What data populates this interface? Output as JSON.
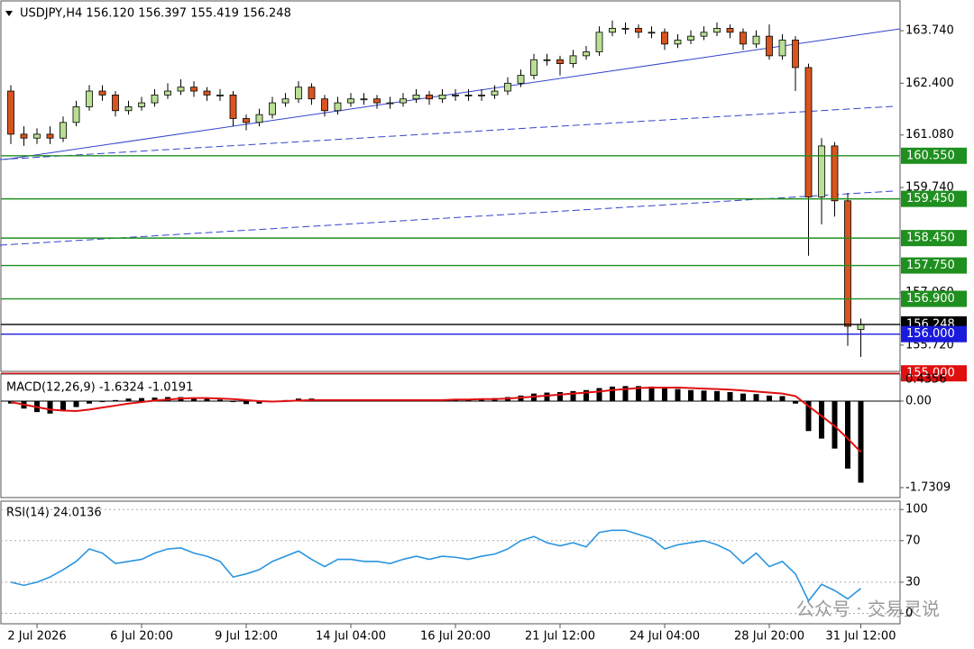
{
  "chart_data": [
    {
      "type": "candlestick",
      "title": "USDJPY,H4  156.120 156.397 155.419 156.248",
      "categories": [
        null,
        null,
        "2 Jul 2026",
        null,
        null,
        null,
        null,
        null,
        null,
        null,
        "6 Jul 20:00",
        null,
        null,
        null,
        null,
        null,
        null,
        null,
        "9 Jul 12:00",
        null,
        null,
        null,
        null,
        null,
        null,
        null,
        "14 Jul 04:00",
        null,
        null,
        null,
        null,
        null,
        null,
        null,
        "16 Jul 20:00",
        null,
        null,
        null,
        null,
        null,
        null,
        null,
        "21 Jul 12:00",
        null,
        null,
        null,
        null,
        null,
        null,
        null,
        "24 Jul 04:00",
        null,
        null,
        null,
        null,
        null,
        null,
        null,
        "28 Jul 20:00",
        null,
        null,
        null,
        null,
        null,
        null,
        "31 Jul 12:00"
      ],
      "open": [
        162.2,
        161.1,
        161.0,
        161.1,
        161.0,
        161.4,
        161.8,
        162.2,
        162.1,
        161.7,
        161.8,
        161.9,
        162.1,
        162.2,
        162.3,
        162.2,
        162.1,
        162.1,
        161.5,
        161.4,
        161.6,
        161.9,
        162.0,
        162.3,
        162.0,
        161.7,
        161.9,
        162.0,
        162.0,
        161.9,
        161.9,
        162.0,
        162.1,
        162.0,
        162.1,
        162.1,
        162.1,
        162.1,
        162.2,
        162.4,
        162.6,
        163.0,
        163.0,
        162.9,
        163.1,
        163.2,
        163.7,
        163.8,
        163.8,
        163.7,
        163.7,
        163.4,
        163.5,
        163.6,
        163.7,
        163.8,
        163.7,
        163.4,
        163.6,
        163.1,
        163.5,
        162.8,
        159.5,
        160.8,
        159.4,
        156.12
      ],
      "high": [
        162.35,
        161.3,
        161.25,
        161.3,
        161.55,
        161.95,
        162.35,
        162.35,
        162.2,
        161.95,
        162.05,
        162.25,
        162.4,
        162.5,
        162.45,
        162.3,
        162.25,
        162.2,
        161.6,
        161.75,
        162.05,
        162.15,
        162.45,
        162.4,
        162.1,
        162.05,
        162.15,
        162.15,
        162.1,
        162.05,
        162.15,
        162.25,
        162.2,
        162.25,
        162.25,
        162.25,
        162.25,
        162.35,
        162.55,
        162.75,
        163.15,
        163.15,
        163.1,
        163.25,
        163.35,
        163.85,
        164.0,
        163.95,
        163.9,
        163.85,
        163.8,
        163.65,
        163.75,
        163.85,
        163.95,
        163.9,
        163.8,
        163.75,
        163.9,
        163.65,
        163.6,
        162.9,
        161.0,
        160.9,
        159.6,
        156.397
      ],
      "low": [
        160.85,
        160.8,
        160.85,
        160.85,
        160.9,
        161.3,
        161.7,
        161.95,
        161.55,
        161.6,
        161.7,
        161.8,
        162.0,
        162.1,
        162.05,
        161.95,
        161.95,
        161.3,
        161.2,
        161.3,
        161.5,
        161.8,
        161.9,
        161.85,
        161.55,
        161.6,
        161.8,
        161.85,
        161.75,
        161.75,
        161.8,
        161.9,
        161.85,
        161.9,
        161.95,
        161.95,
        161.95,
        162.0,
        162.1,
        162.3,
        162.5,
        162.85,
        162.6,
        162.8,
        163.0,
        163.1,
        163.6,
        163.65,
        163.55,
        163.55,
        163.25,
        163.3,
        163.4,
        163.5,
        163.6,
        163.55,
        163.25,
        163.3,
        163.0,
        163.0,
        162.2,
        158.0,
        158.8,
        159.0,
        155.7,
        155.419
      ],
      "close": [
        161.1,
        161.0,
        161.1,
        161.0,
        161.4,
        161.8,
        162.2,
        162.1,
        161.7,
        161.8,
        161.9,
        162.1,
        162.2,
        162.3,
        162.2,
        162.1,
        162.1,
        161.5,
        161.4,
        161.6,
        161.9,
        162.0,
        162.3,
        162.0,
        161.7,
        161.9,
        162.0,
        162.0,
        161.9,
        161.9,
        162.0,
        162.1,
        162.0,
        162.1,
        162.1,
        162.1,
        162.1,
        162.2,
        162.4,
        162.6,
        163.0,
        163.0,
        162.9,
        163.1,
        163.2,
        163.7,
        163.8,
        163.8,
        163.7,
        163.7,
        163.4,
        163.5,
        163.6,
        163.7,
        163.8,
        163.7,
        163.4,
        163.6,
        163.1,
        163.5,
        162.8,
        159.5,
        160.8,
        159.4,
        156.2,
        156.248
      ],
      "up_color": "#b9df95",
      "down_color": "#d9541e",
      "ylim": [
        155.05,
        164.5
      ],
      "yticks": [
        {
          "value": 163.74,
          "label": "163.740"
        },
        {
          "value": 162.4,
          "label": "162.400"
        },
        {
          "value": 161.08,
          "label": "161.080"
        },
        {
          "value": 159.74,
          "label": "159.740"
        },
        {
          "value": 157.06,
          "label": "157.060"
        },
        {
          "value": 155.72,
          "label": "155.720"
        }
      ],
      "levels": [
        {
          "value": 160.55,
          "label": "160.550",
          "color": "#1f8f1f"
        },
        {
          "value": 159.45,
          "label": "159.450",
          "color": "#1f8f1f"
        },
        {
          "value": 158.45,
          "label": "158.450",
          "color": "#1f8f1f"
        },
        {
          "value": 157.75,
          "label": "157.750",
          "color": "#1f8f1f"
        },
        {
          "value": 156.9,
          "label": "156.900",
          "color": "#1f8f1f"
        },
        {
          "value": 156.248,
          "label": "156.248",
          "color": "#000000"
        },
        {
          "value": 156.0,
          "label": "156.000",
          "color": "#1a1adc"
        },
        {
          "value": 155.0,
          "label": "155.000",
          "color": "#e01010"
        }
      ],
      "watermark": "公众号 · 交易灵说"
    },
    {
      "type": "macd",
      "title": "MACD(12,26,9) -1.6324 -1.0191",
      "histogram": [
        -0.05,
        -0.15,
        -0.22,
        -0.25,
        -0.2,
        -0.12,
        -0.05,
        -0.02,
        0.02,
        0.05,
        0.06,
        0.07,
        0.08,
        0.08,
        0.07,
        0.05,
        0.03,
        -0.02,
        -0.06,
        -0.05,
        -0.02,
        0.02,
        0.05,
        0.05,
        0.02,
        0.01,
        0.02,
        0.02,
        0.01,
        0.01,
        0.02,
        0.02,
        0.02,
        0.03,
        0.03,
        0.04,
        0.05,
        0.06,
        0.08,
        0.11,
        0.15,
        0.17,
        0.18,
        0.2,
        0.22,
        0.26,
        0.29,
        0.3,
        0.3,
        0.29,
        0.26,
        0.24,
        0.22,
        0.21,
        0.2,
        0.18,
        0.15,
        0.14,
        0.11,
        0.1,
        -0.05,
        -0.6,
        -0.75,
        -0.95,
        -1.35,
        -1.6324
      ],
      "signal": [
        -0.02,
        -0.07,
        -0.12,
        -0.17,
        -0.19,
        -0.2,
        -0.17,
        -0.13,
        -0.09,
        -0.05,
        -0.02,
        0.01,
        0.03,
        0.05,
        0.06,
        0.06,
        0.05,
        0.04,
        0.02,
        0.0,
        -0.01,
        0.0,
        0.01,
        0.02,
        0.02,
        0.02,
        0.02,
        0.02,
        0.02,
        0.02,
        0.02,
        0.02,
        0.02,
        0.02,
        0.03,
        0.03,
        0.04,
        0.04,
        0.05,
        0.07,
        0.09,
        0.11,
        0.13,
        0.15,
        0.17,
        0.19,
        0.22,
        0.24,
        0.26,
        0.27,
        0.27,
        0.27,
        0.26,
        0.25,
        0.24,
        0.23,
        0.21,
        0.19,
        0.17,
        0.15,
        0.1,
        -0.1,
        -0.3,
        -0.5,
        -0.75,
        -1.0191
      ],
      "histogram_color": "#000000",
      "signal_color": "#e01010",
      "ylim": [
        -1.93,
        0.54
      ],
      "yticks": [
        0.4356,
        {
          "value": 0,
          "label": "0.00"
        },
        -1.7309
      ]
    },
    {
      "type": "line",
      "title": "RSI(14) 24.0136",
      "values": [
        30,
        27,
        30,
        35,
        42,
        50,
        62,
        58,
        48,
        50,
        52,
        58,
        62,
        63,
        58,
        55,
        50,
        35,
        38,
        42,
        50,
        55,
        60,
        52,
        45,
        52,
        52,
        50,
        50,
        48,
        52,
        55,
        52,
        55,
        54,
        52,
        55,
        57,
        62,
        70,
        74,
        68,
        65,
        68,
        64,
        78,
        80,
        80,
        76,
        72,
        62,
        66,
        68,
        70,
        66,
        60,
        48,
        58,
        45,
        50,
        38,
        12,
        28,
        22,
        14,
        24.0136
      ],
      "color": "#2a95e0",
      "ylim": [
        -10,
        108
      ],
      "yticks": [
        100,
        70,
        30,
        0
      ],
      "grid": true
    }
  ]
}
